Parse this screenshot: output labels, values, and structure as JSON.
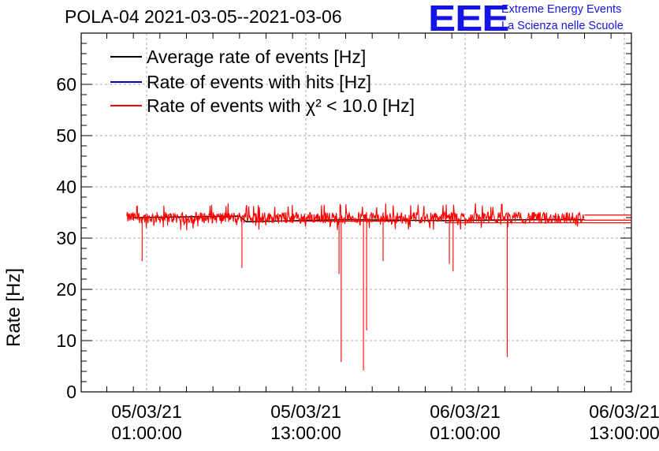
{
  "header": {
    "title": "POLA-04 2021-03-05--2021-03-06",
    "logo_text": "EEE",
    "logo_line1": "Extreme Energy Events",
    "logo_line2": "La Scienza nelle Scuole"
  },
  "colors": {
    "average": "#000000",
    "hits": "#0000cc",
    "chi2": "#ff0000",
    "logo": "#1414e6",
    "grid": "#aaaaaa"
  },
  "chart_data": {
    "type": "line",
    "ylabel": "Rate [Hz]",
    "xlabel": "",
    "ylim": [
      0,
      70
    ],
    "y_ticks": [
      "0",
      "10",
      "20",
      "30",
      "40",
      "50",
      "60"
    ],
    "x_range_hours_label": "05/03/21 01:00:00 to 06/03/21 13:00:00",
    "x_ticks": [
      {
        "date": "05/03/21",
        "time": "01:00:00"
      },
      {
        "date": "05/03/21",
        "time": "13:00:00"
      },
      {
        "date": "06/03/21",
        "time": "01:00:00"
      },
      {
        "date": "06/03/21",
        "time": "13:00:00"
      }
    ],
    "grid": true,
    "legend_position": "top-left",
    "series": [
      {
        "name": "Average rate of events [Hz]",
        "color": "#000000",
        "points": [
          {
            "t": "05/03/21 00:00",
            "v": 34.0
          },
          {
            "t": "05/03/21 08:00",
            "v": 34.3
          },
          {
            "t": "05/03/21 08:30",
            "v": 33.2
          },
          {
            "t": "05/03/21 16:00",
            "v": 33.6
          },
          {
            "t": "05/03/21 23:30",
            "v": 33.4
          },
          {
            "t": "06/03/21 06:00",
            "v": 33.6
          },
          {
            "t": "06/03/21 10:00",
            "v": 33.6
          }
        ]
      },
      {
        "name": "Rate of events with hits [Hz]",
        "color": "#0000cc",
        "points": []
      },
      {
        "name": "Rate of events with χ² < 10.0 [Hz]",
        "color": "#ff0000",
        "baseline": 34.0,
        "noise_band": [
          31.5,
          36.0
        ],
        "dips": [
          {
            "t": "05/03/21 00:40",
            "v": 25.5
          },
          {
            "t": "05/03/21 08:10",
            "v": 24.2
          },
          {
            "t": "05/03/21 15:30",
            "v": 23.0
          },
          {
            "t": "05/03/21 15:40",
            "v": 5.8
          },
          {
            "t": "05/03/21 17:20",
            "v": 4.2
          },
          {
            "t": "05/03/21 17:35",
            "v": 12.0
          },
          {
            "t": "05/03/21 18:50",
            "v": 25.5
          },
          {
            "t": "05/03/21 23:50",
            "v": 25.0
          },
          {
            "t": "06/03/21 00:05",
            "v": 23.5
          },
          {
            "t": "06/03/21 04:10",
            "v": 6.8
          }
        ],
        "end_flat": [
          {
            "t": "06/03/21 13:00",
            "v": 33.5
          },
          {
            "t": "06/03/21 13:00",
            "v": 34.5
          }
        ]
      }
    ]
  }
}
